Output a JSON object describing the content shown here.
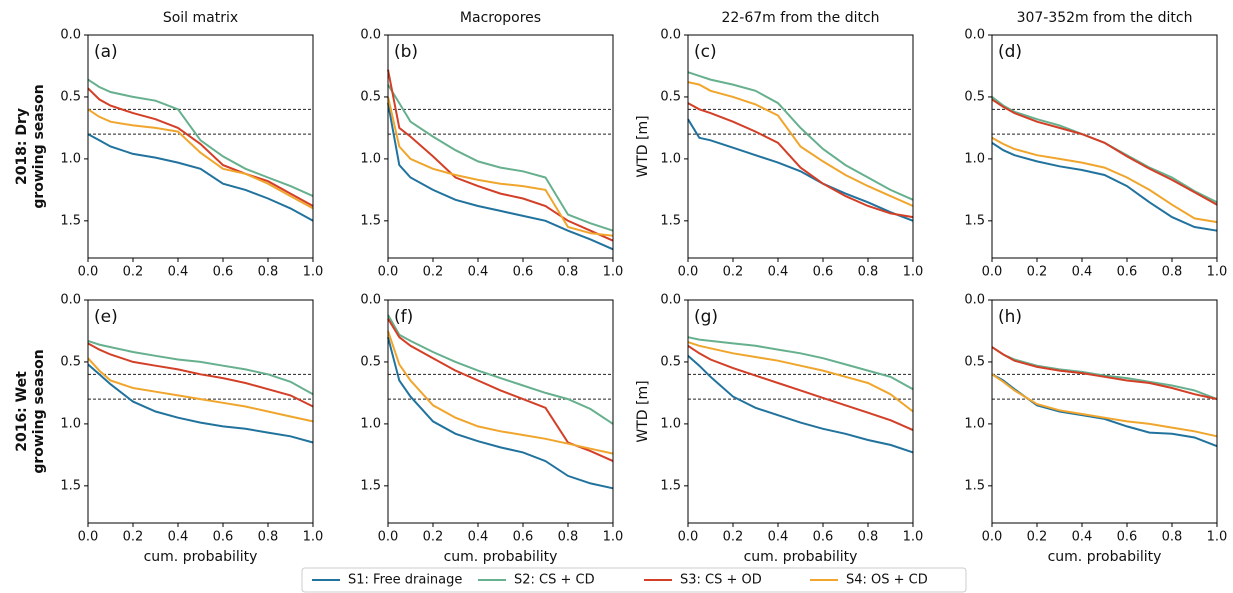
{
  "chart_data": [
    {
      "type": "line",
      "title": "Soil matrix",
      "panel_label": "(a)",
      "legend": "bottom",
      "x": [
        0,
        0.05,
        0.1,
        0.2,
        0.3,
        0.4,
        0.5,
        0.6,
        0.7,
        0.8,
        0.9,
        1.0
      ],
      "xlim": [
        0,
        1
      ],
      "ylim": [
        1.8,
        0
      ],
      "xticks": [
        {
          "value": 0,
          "label": "0.0"
        },
        0.2,
        0.4,
        0.6,
        0.8,
        {
          "value": 1,
          "label": "1.0"
        }
      ],
      "yticks": [
        {
          "value": 0,
          "label": "0.0"
        },
        0.5,
        {
          "value": 1,
          "label": "1.0"
        },
        1.5
      ],
      "hlines": [
        0.6,
        0.8
      ],
      "series": [
        {
          "name": "S1: Free drainage",
          "color": "#21739e",
          "values": [
            0.8,
            0.85,
            0.9,
            0.96,
            0.99,
            1.03,
            1.08,
            1.2,
            1.25,
            1.32,
            1.4,
            1.5
          ]
        },
        {
          "name": "S2: CS + CD",
          "color": "#66b08e",
          "values": [
            0.36,
            0.42,
            0.46,
            0.5,
            0.53,
            0.6,
            0.85,
            0.98,
            1.08,
            1.15,
            1.22,
            1.3
          ]
        },
        {
          "name": "S3: CS + OD",
          "color": "#d33f27",
          "values": [
            0.43,
            0.52,
            0.57,
            0.63,
            0.68,
            0.75,
            0.88,
            1.05,
            1.12,
            1.18,
            1.28,
            1.38
          ]
        },
        {
          "name": "S4: OS + CD",
          "color": "#f0a52c",
          "values": [
            0.6,
            0.66,
            0.7,
            0.73,
            0.75,
            0.78,
            0.95,
            1.08,
            1.12,
            1.2,
            1.3,
            1.4
          ]
        }
      ]
    },
    {
      "type": "line",
      "title": "Macropores",
      "panel_label": "(b)",
      "x": [
        0,
        0.05,
        0.1,
        0.2,
        0.3,
        0.4,
        0.5,
        0.6,
        0.7,
        0.8,
        0.9,
        1.0
      ],
      "xlim": [
        0,
        1
      ],
      "ylim": [
        1.8,
        0
      ],
      "xticks": [
        {
          "value": 0,
          "label": "0.0"
        },
        0.2,
        0.4,
        0.6,
        0.8,
        {
          "value": 1,
          "label": "1.0"
        }
      ],
      "yticks": [
        {
          "value": 0,
          "label": "0.0"
        },
        0.5,
        {
          "value": 1,
          "label": "1.0"
        },
        1.5
      ],
      "hlines": [
        0.6,
        0.8
      ],
      "series": [
        {
          "color": "#21739e",
          "values": [
            0.55,
            1.05,
            1.15,
            1.25,
            1.33,
            1.38,
            1.42,
            1.46,
            1.5,
            1.58,
            1.65,
            1.73
          ]
        },
        {
          "color": "#66b08e",
          "values": [
            0.4,
            0.55,
            0.7,
            0.82,
            0.93,
            1.02,
            1.07,
            1.1,
            1.15,
            1.45,
            1.52,
            1.58
          ]
        },
        {
          "color": "#d33f27",
          "values": [
            0.28,
            0.75,
            0.82,
            0.98,
            1.15,
            1.22,
            1.28,
            1.32,
            1.38,
            1.5,
            1.58,
            1.66
          ]
        },
        {
          "color": "#f0a52c",
          "values": [
            0.5,
            0.9,
            1.0,
            1.08,
            1.13,
            1.17,
            1.2,
            1.22,
            1.25,
            1.55,
            1.6,
            1.62
          ]
        }
      ]
    },
    {
      "type": "line",
      "title": "22-67m from the ditch",
      "panel_label": "(c)",
      "ylabel": "WTD [m]",
      "x": [
        0,
        0.05,
        0.1,
        0.2,
        0.3,
        0.4,
        0.5,
        0.6,
        0.7,
        0.8,
        0.9,
        1.0
      ],
      "xlim": [
        0,
        1
      ],
      "ylim": [
        1.8,
        0
      ],
      "xticks": [
        {
          "value": 0,
          "label": "0.0"
        },
        0.2,
        0.4,
        0.6,
        0.8,
        {
          "value": 1,
          "label": "1.0"
        }
      ],
      "yticks": [
        {
          "value": 0,
          "label": "0.0"
        },
        0.5,
        {
          "value": 1,
          "label": "1.0"
        },
        1.5
      ],
      "hlines": [
        0.6,
        0.8
      ],
      "series": [
        {
          "color": "#21739e",
          "values": [
            0.68,
            0.83,
            0.85,
            0.91,
            0.97,
            1.03,
            1.1,
            1.2,
            1.28,
            1.35,
            1.43,
            1.5
          ]
        },
        {
          "color": "#66b08e",
          "values": [
            0.3,
            0.33,
            0.36,
            0.4,
            0.45,
            0.55,
            0.75,
            0.92,
            1.05,
            1.15,
            1.25,
            1.33
          ]
        },
        {
          "color": "#d33f27",
          "values": [
            0.55,
            0.6,
            0.63,
            0.7,
            0.78,
            0.87,
            1.07,
            1.2,
            1.3,
            1.38,
            1.44,
            1.47
          ]
        },
        {
          "color": "#f0a52c",
          "values": [
            0.38,
            0.4,
            0.45,
            0.5,
            0.56,
            0.65,
            0.9,
            1.02,
            1.13,
            1.22,
            1.3,
            1.38
          ]
        }
      ]
    },
    {
      "type": "line",
      "title": "307-352m from the ditch",
      "panel_label": "(d)",
      "x": [
        0,
        0.05,
        0.1,
        0.2,
        0.3,
        0.4,
        0.5,
        0.6,
        0.7,
        0.8,
        0.9,
        1.0
      ],
      "xlim": [
        0,
        1
      ],
      "ylim": [
        1.8,
        0
      ],
      "xticks": [
        {
          "value": 0,
          "label": "0.0"
        },
        0.2,
        0.4,
        0.6,
        0.8,
        {
          "value": 1,
          "label": "1.0"
        }
      ],
      "yticks": [
        {
          "value": 0,
          "label": "0.0"
        },
        0.5,
        {
          "value": 1,
          "label": "1.0"
        },
        1.5
      ],
      "hlines": [
        0.6,
        0.8
      ],
      "series": [
        {
          "color": "#21739e",
          "values": [
            0.87,
            0.93,
            0.97,
            1.02,
            1.06,
            1.09,
            1.13,
            1.22,
            1.35,
            1.47,
            1.55,
            1.58
          ]
        },
        {
          "color": "#66b08e",
          "values": [
            0.5,
            0.57,
            0.62,
            0.68,
            0.73,
            0.8,
            0.87,
            0.97,
            1.07,
            1.15,
            1.26,
            1.35
          ]
        },
        {
          "color": "#d33f27",
          "values": [
            0.52,
            0.58,
            0.63,
            0.7,
            0.75,
            0.8,
            0.87,
            0.98,
            1.08,
            1.17,
            1.27,
            1.37
          ]
        },
        {
          "color": "#f0a52c",
          "values": [
            0.83,
            0.88,
            0.92,
            0.97,
            1.0,
            1.03,
            1.07,
            1.15,
            1.25,
            1.37,
            1.48,
            1.51
          ]
        }
      ]
    },
    {
      "type": "line",
      "panel_label": "(e)",
      "xlabel": "cum. probability",
      "x": [
        0,
        0.05,
        0.1,
        0.2,
        0.3,
        0.4,
        0.5,
        0.6,
        0.7,
        0.8,
        0.9,
        1.0
      ],
      "xlim": [
        0,
        1
      ],
      "ylim": [
        1.8,
        0
      ],
      "xticks": [
        {
          "value": 0,
          "label": "0.0"
        },
        0.2,
        0.4,
        0.6,
        0.8,
        {
          "value": 1,
          "label": "1.0"
        }
      ],
      "yticks": [
        {
          "value": 0,
          "label": "0.0"
        },
        0.5,
        {
          "value": 1,
          "label": "1.0"
        },
        1.5
      ],
      "hlines": [
        0.6,
        0.8
      ],
      "series": [
        {
          "color": "#21739e",
          "values": [
            0.52,
            0.6,
            0.68,
            0.82,
            0.9,
            0.95,
            0.99,
            1.02,
            1.04,
            1.07,
            1.1,
            1.15
          ]
        },
        {
          "color": "#66b08e",
          "values": [
            0.33,
            0.36,
            0.38,
            0.42,
            0.45,
            0.48,
            0.5,
            0.53,
            0.56,
            0.6,
            0.66,
            0.76
          ]
        },
        {
          "color": "#d33f27",
          "values": [
            0.35,
            0.4,
            0.44,
            0.5,
            0.53,
            0.56,
            0.6,
            0.63,
            0.67,
            0.72,
            0.77,
            0.86
          ]
        },
        {
          "color": "#f0a52c",
          "values": [
            0.47,
            0.57,
            0.65,
            0.71,
            0.74,
            0.77,
            0.8,
            0.83,
            0.86,
            0.9,
            0.94,
            0.98
          ]
        }
      ]
    },
    {
      "type": "line",
      "panel_label": "(f)",
      "xlabel": "cum. probability",
      "x": [
        0,
        0.05,
        0.1,
        0.2,
        0.3,
        0.4,
        0.5,
        0.6,
        0.7,
        0.8,
        0.9,
        1.0
      ],
      "xlim": [
        0,
        1
      ],
      "ylim": [
        1.8,
        0
      ],
      "xticks": [
        {
          "value": 0,
          "label": "0.0"
        },
        0.2,
        0.4,
        0.6,
        0.8,
        {
          "value": 1,
          "label": "1.0"
        }
      ],
      "yticks": [
        {
          "value": 0,
          "label": "0.0"
        },
        0.5,
        {
          "value": 1,
          "label": "1.0"
        },
        1.5
      ],
      "hlines": [
        0.6,
        0.8
      ],
      "series": [
        {
          "color": "#21739e",
          "values": [
            0.3,
            0.65,
            0.78,
            0.98,
            1.08,
            1.14,
            1.19,
            1.23,
            1.3,
            1.42,
            1.48,
            1.52
          ]
        },
        {
          "color": "#66b08e",
          "values": [
            0.12,
            0.28,
            0.33,
            0.42,
            0.5,
            0.57,
            0.63,
            0.69,
            0.75,
            0.8,
            0.88,
            1.0
          ]
        },
        {
          "color": "#d33f27",
          "values": [
            0.15,
            0.3,
            0.37,
            0.47,
            0.57,
            0.65,
            0.73,
            0.8,
            0.87,
            1.15,
            1.22,
            1.3
          ]
        },
        {
          "color": "#f0a52c",
          "values": [
            0.25,
            0.52,
            0.65,
            0.85,
            0.95,
            1.02,
            1.06,
            1.09,
            1.12,
            1.16,
            1.2,
            1.24
          ]
        }
      ]
    },
    {
      "type": "line",
      "panel_label": "(g)",
      "xlabel": "cum. probability",
      "ylabel": "WTD [m]",
      "x": [
        0,
        0.05,
        0.1,
        0.2,
        0.3,
        0.4,
        0.5,
        0.6,
        0.7,
        0.8,
        0.9,
        1.0
      ],
      "xlim": [
        0,
        1
      ],
      "ylim": [
        1.8,
        0
      ],
      "xticks": [
        {
          "value": 0,
          "label": "0.0"
        },
        0.2,
        0.4,
        0.6,
        0.8,
        {
          "value": 1,
          "label": "1.0"
        }
      ],
      "yticks": [
        {
          "value": 0,
          "label": "0.0"
        },
        0.5,
        {
          "value": 1,
          "label": "1.0"
        },
        1.5
      ],
      "hlines": [
        0.6,
        0.8
      ],
      "series": [
        {
          "color": "#21739e",
          "values": [
            0.45,
            0.53,
            0.62,
            0.78,
            0.87,
            0.93,
            0.99,
            1.04,
            1.08,
            1.13,
            1.17,
            1.23
          ]
        },
        {
          "color": "#66b08e",
          "values": [
            0.3,
            0.32,
            0.33,
            0.35,
            0.37,
            0.4,
            0.43,
            0.47,
            0.52,
            0.57,
            0.62,
            0.72
          ]
        },
        {
          "color": "#d33f27",
          "values": [
            0.37,
            0.43,
            0.48,
            0.55,
            0.61,
            0.67,
            0.73,
            0.79,
            0.85,
            0.91,
            0.97,
            1.05
          ]
        },
        {
          "color": "#f0a52c",
          "values": [
            0.34,
            0.37,
            0.39,
            0.43,
            0.46,
            0.49,
            0.53,
            0.57,
            0.62,
            0.67,
            0.76,
            0.9
          ]
        }
      ]
    },
    {
      "type": "line",
      "panel_label": "(h)",
      "xlabel": "cum. probability",
      "x": [
        0,
        0.05,
        0.1,
        0.2,
        0.3,
        0.4,
        0.5,
        0.6,
        0.7,
        0.8,
        0.9,
        1.0
      ],
      "xlim": [
        0,
        1
      ],
      "ylim": [
        1.8,
        0
      ],
      "xticks": [
        {
          "value": 0,
          "label": "0.0"
        },
        0.2,
        0.4,
        0.6,
        0.8,
        {
          "value": 1,
          "label": "1.0"
        }
      ],
      "yticks": [
        {
          "value": 0,
          "label": "0.0"
        },
        0.5,
        {
          "value": 1,
          "label": "1.0"
        },
        1.5
      ],
      "hlines": [
        0.6,
        0.8
      ],
      "series": [
        {
          "color": "#21739e",
          "values": [
            0.6,
            0.65,
            0.72,
            0.85,
            0.9,
            0.93,
            0.96,
            1.02,
            1.07,
            1.08,
            1.11,
            1.18
          ]
        },
        {
          "color": "#66b08e",
          "values": [
            0.38,
            0.44,
            0.48,
            0.53,
            0.56,
            0.58,
            0.61,
            0.63,
            0.66,
            0.69,
            0.73,
            0.8
          ]
        },
        {
          "color": "#d33f27",
          "values": [
            0.38,
            0.44,
            0.49,
            0.54,
            0.57,
            0.59,
            0.62,
            0.65,
            0.67,
            0.71,
            0.76,
            0.8
          ]
        },
        {
          "color": "#f0a52c",
          "values": [
            0.6,
            0.66,
            0.73,
            0.84,
            0.89,
            0.92,
            0.95,
            0.98,
            1.0,
            1.03,
            1.06,
            1.1
          ]
        }
      ]
    }
  ],
  "row_labels": [
    [
      "2018: Dry",
      "growing season"
    ],
    [
      "2016: Wet",
      "growing season"
    ]
  ]
}
